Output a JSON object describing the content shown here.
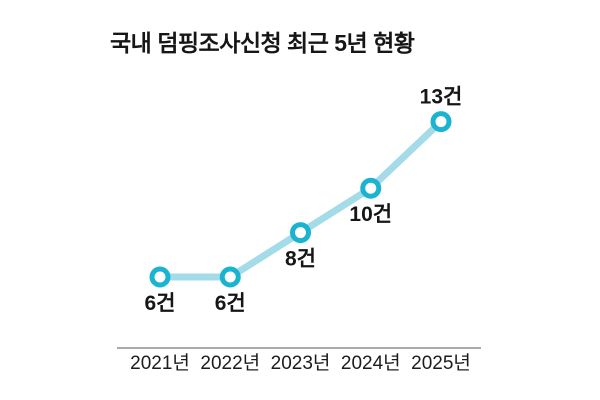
{
  "title": "국내 덤핑조사신청 최근 5년 현황",
  "colors": {
    "line": "#a3dce8",
    "marker_ring": "#1ab4d0",
    "marker_fill": "#ffffff",
    "axis_line": "#555555",
    "text": "#161616"
  },
  "chart_data": {
    "type": "line",
    "title": "국내 덤핑조사신청 최근 5년 현황",
    "categories": [
      "2021년",
      "2022년",
      "2023년",
      "2024년",
      "2025년"
    ],
    "values": [
      6,
      6,
      8,
      10,
      13
    ],
    "point_labels": [
      "6건",
      "6건",
      "8건",
      "10건",
      "13건"
    ],
    "point_label_positions": [
      "below",
      "below",
      "below",
      "below",
      "above"
    ],
    "unit": "건",
    "xlabel": "",
    "ylabel": "",
    "ylim": [
      5,
      14
    ],
    "grid": false,
    "legend": false,
    "x_axis_line": true,
    "y_axis_line": false
  }
}
